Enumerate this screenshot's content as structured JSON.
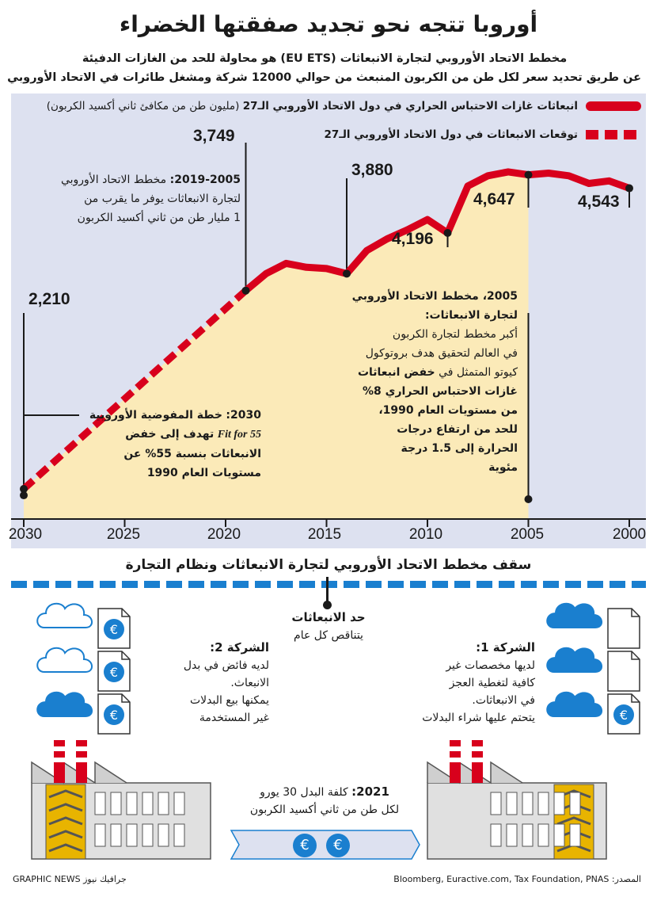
{
  "title": "أوروبا تتجه نحو تجديد صفقتها الخضراء",
  "subtitle": {
    "line1": "مخطط الاتحاد الأوروبي لتجارة الانبعاثات (EU ETS) هو محاولة للحد من الغازات الدفيئة",
    "line2": "عن طريق تحديد سعر لكل طن من الكربون المنبعث من حوالي 12000 شركة ومشغل طائرات في الاتحاد الأوروبي"
  },
  "legend": {
    "actual_label": "انبعاثات غازات الاحتباس الحراري في دول الاتحاد الأوروبي الـ27",
    "actual_unit": "(مليون طن من مكافئ ثاني أكسيد الكربون)",
    "forecast_label": "توقعات الانبعاثات في دول الاتحاد الأوروبي الـ27"
  },
  "chart_data": {
    "type": "line",
    "x_axis": {
      "ticks": [
        2000,
        2005,
        2010,
        2015,
        2020,
        2025,
        2030
      ],
      "range": [
        2000,
        2030
      ],
      "direction": "right-to-left"
    },
    "y_range": [
      2000,
      5000
    ],
    "series": [
      {
        "name": "انبعاثات غازات الاحتباس الحراري في دول الاتحاد الأوروبي الـ27",
        "style": "solid",
        "points": [
          [
            2000,
            4543
          ],
          [
            2001,
            4600
          ],
          [
            2002,
            4580
          ],
          [
            2003,
            4640
          ],
          [
            2004,
            4660
          ],
          [
            2005,
            4647
          ],
          [
            2006,
            4670
          ],
          [
            2007,
            4640
          ],
          [
            2008,
            4560
          ],
          [
            2009,
            4196
          ],
          [
            2010,
            4300
          ],
          [
            2011,
            4220
          ],
          [
            2012,
            4150
          ],
          [
            2013,
            4060
          ],
          [
            2014,
            3880
          ],
          [
            2015,
            3920
          ],
          [
            2016,
            3930
          ],
          [
            2017,
            3960
          ],
          [
            2018,
            3880
          ],
          [
            2019,
            3749
          ]
        ]
      },
      {
        "name": "توقعات الانبعاثات في دول الاتحاد الأوروبي الـ27",
        "style": "dashed",
        "points": [
          [
            2019,
            3749
          ],
          [
            2030,
            2210
          ]
        ]
      }
    ],
    "labels": [
      {
        "x": 2000,
        "value": "4,543"
      },
      {
        "x": 2005,
        "value": "4,647"
      },
      {
        "x": 2009,
        "value": "4,196"
      },
      {
        "x": 2014,
        "value": "3,880"
      },
      {
        "x": 2019,
        "value": "3,749"
      },
      {
        "x": 2030,
        "value": "2,210"
      }
    ],
    "shaded_range": [
      2005,
      2030
    ]
  },
  "notes": {
    "n2019_head": "2019-2005:",
    "n2019_body1": "مخطط الاتحاد الأوروبي",
    "n2019_body2": "لتجارة الانبعاثات يوفر ما يقرب من",
    "n2019_body3": "1 مليار طن من ثاني أكسيد الكربون",
    "n2005_head1": "2005، مخطط الاتحاد الأوروبي",
    "n2005_head2": "لتجارة الانبعاثات:",
    "n2005_l1": "أكبر مخطط لتجارة الكربون",
    "n2005_l2": "في العالم لتحقيق هدف بروتوكول",
    "n2005_l3a": "كيوتو المتمثل في",
    "n2005_l3b": "خفض انبعاثات",
    "n2005_l4": "غازات الاحتباس الحراري 8%",
    "n2005_l5": "من مستويات العام 1990،",
    "n2005_l6": "للحد من ارتفاع درجات",
    "n2005_l7": "الحرارة إلى 1.5 درجة",
    "n2005_l8": "مئوية",
    "n2030_head": "2030:",
    "n2030_l1": "خطة المفوضية الأوروبية",
    "n2030_l2a": "Fit for 55",
    "n2030_l2b": "تهدف إلى خفض",
    "n2030_l3": "الانبعاثات بنسبة 55% عن",
    "n2030_l4": "مستويات العام 1990"
  },
  "lower": {
    "section_title": "سقف مخطط الاتحاد الأوروبي لتجارة الانبعاثات ونظام التجارة",
    "cap_title": "حد الانبعاثات",
    "cap_sub": "يتناقص كل عام",
    "company1_title": "الشركة 1:",
    "company1_l1": "لديها مخصصات غير",
    "company1_l2": "كافية لتغطية العجز",
    "company1_l3": "في الانبعاثات.",
    "company1_l4": "يتحتم عليها شراء البدلات",
    "company2_title": "الشركة 2:",
    "company2_l1": "لديه فائض في بدل",
    "company2_l2": "الانبعاث.",
    "company2_l3": "يمكنها بيع البدلات",
    "company2_l4": "غير المستخدمة",
    "price_head": "2021:",
    "price_l1": "كلفة البدل 30 يورو",
    "price_l2": "لكل طن من ثاني أكسيد الكربون",
    "euro_symbol": "€"
  },
  "footer": {
    "source": "المصدر: Bloomberg, Euractive.com, Tax Foundation, PNAS",
    "credit": "GRAPHIC NEWS جرافيك نيوز"
  },
  "colors": {
    "line": "#d8001c",
    "shade": "#fbeab8",
    "panel": "#dde1f0",
    "accent_blue": "#1a7fcf"
  }
}
